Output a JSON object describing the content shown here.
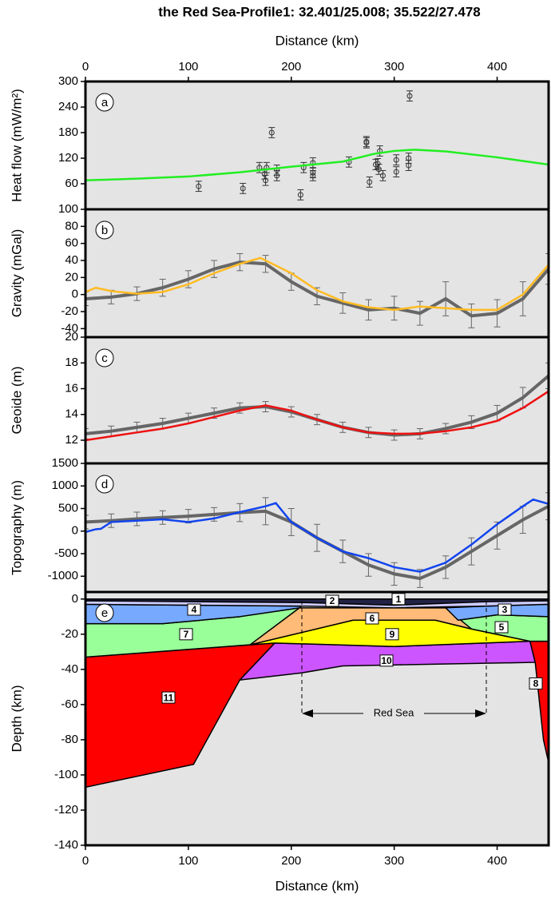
{
  "title": "the Red Sea-Profile1: 32.401/25.008; 35.522/27.478",
  "chart_data": [
    {
      "type": "line",
      "panel": "a",
      "xlabel": "Distance (km)",
      "xlim": [
        0,
        450
      ],
      "xticks": [
        0,
        100,
        200,
        300,
        400
      ],
      "ylabel": "Heat flow (mW/m²)",
      "ylim": [
        0,
        300
      ],
      "yticks": [
        60,
        120,
        180,
        240,
        300
      ],
      "series": [
        {
          "draw": "points",
          "color": "#333333",
          "x": [
            110,
            153,
            181,
            169,
            174,
            176,
            175,
            186,
            186,
            212,
            209,
            221,
            221,
            221,
            256,
            273,
            273,
            276,
            282,
            284,
            285,
            286,
            289,
            302,
            302,
            314,
            314,
            315
          ],
          "values": [
            54,
            49,
            180,
            98,
            83,
            98,
            68,
            79,
            92,
            98,
            34,
            109,
            86,
            79,
            111,
            159,
            156,
            64,
            105,
            107,
            94,
            137,
            79,
            116,
            88,
            120,
            103,
            266
          ],
          "errors": [
            12,
            12,
            12,
            12,
            12,
            12,
            12,
            12,
            12,
            12,
            12,
            12,
            12,
            12,
            12,
            12,
            12,
            12,
            12,
            12,
            12,
            12,
            12,
            12,
            12,
            12,
            12,
            12
          ]
        },
        {
          "draw": "line",
          "color": "#22ee22",
          "x": [
            0,
            50,
            100,
            150,
            200,
            250,
            280,
            300,
            320,
            350,
            400,
            450
          ],
          "values": [
            68,
            72,
            77,
            87,
            100,
            112,
            130,
            137,
            140,
            136,
            122,
            105
          ]
        }
      ]
    },
    {
      "type": "line",
      "panel": "b",
      "xlim": [
        0,
        450
      ],
      "ylabel": "Gravity (mGal)",
      "ylim": [
        -50,
        100
      ],
      "yticks": [
        -40,
        -20,
        0,
        20,
        40,
        60,
        80,
        100
      ],
      "series": [
        {
          "draw": "band",
          "color": "#666666",
          "x": [
            0,
            25,
            50,
            75,
            100,
            125,
            150,
            175,
            200,
            225,
            250,
            275,
            300,
            325,
            350,
            375,
            400,
            425,
            450
          ],
          "values": [
            -5,
            -3,
            1,
            8,
            18,
            30,
            38,
            36,
            15,
            -2,
            -10,
            -18,
            -16,
            -22,
            -5,
            -25,
            -22,
            -5,
            30
          ],
          "errors": [
            8,
            8,
            8,
            10,
            10,
            10,
            10,
            10,
            10,
            10,
            12,
            12,
            14,
            14,
            20,
            14,
            16,
            20,
            18
          ]
        },
        {
          "draw": "line",
          "color": "#ffbb22",
          "x": [
            0,
            10,
            25,
            50,
            75,
            100,
            125,
            150,
            170,
            200,
            225,
            250,
            275,
            300,
            325,
            350,
            375,
            400,
            425,
            450
          ],
          "values": [
            3,
            8,
            4,
            1,
            3,
            12,
            25,
            36,
            43,
            25,
            5,
            -8,
            -15,
            -18,
            -14,
            -16,
            -18,
            -18,
            0,
            35
          ]
        }
      ]
    },
    {
      "type": "line",
      "panel": "c",
      "xlim": [
        0,
        450
      ],
      "ylabel": "Geoide (m)",
      "ylim": [
        10.2,
        20
      ],
      "yticks": [
        12,
        14,
        16,
        18,
        20
      ],
      "series": [
        {
          "draw": "band",
          "color": "#666666",
          "x": [
            0,
            25,
            50,
            75,
            100,
            125,
            150,
            175,
            200,
            225,
            250,
            275,
            300,
            325,
            350,
            375,
            400,
            425,
            450
          ],
          "values": [
            12.5,
            12.7,
            13.0,
            13.3,
            13.7,
            14.1,
            14.5,
            14.6,
            14.2,
            13.6,
            13.0,
            12.6,
            12.4,
            12.5,
            12.9,
            13.4,
            14.1,
            15.3,
            17.0
          ],
          "errors": [
            0.4,
            0.4,
            0.4,
            0.4,
            0.4,
            0.4,
            0.4,
            0.4,
            0.4,
            0.4,
            0.4,
            0.4,
            0.4,
            0.4,
            0.4,
            0.5,
            0.6,
            0.8,
            1.0
          ]
        },
        {
          "draw": "line",
          "color": "#ee1111",
          "x": [
            0,
            25,
            50,
            75,
            100,
            125,
            150,
            175,
            200,
            225,
            250,
            275,
            300,
            325,
            350,
            375,
            400,
            425,
            450
          ],
          "values": [
            12.0,
            12.3,
            12.6,
            12.9,
            13.3,
            13.8,
            14.3,
            14.7,
            14.3,
            13.6,
            13.0,
            12.6,
            12.5,
            12.5,
            12.7,
            13.0,
            13.5,
            14.5,
            15.8
          ]
        }
      ]
    },
    {
      "type": "line",
      "panel": "d",
      "xlim": [
        0,
        450
      ],
      "ylabel": "Topography (m)",
      "ylim": [
        -1350,
        1500
      ],
      "yticks": [
        -1000,
        -500,
        0,
        500,
        1000,
        1500
      ],
      "series": [
        {
          "draw": "band",
          "color": "#666666",
          "x": [
            0,
            25,
            50,
            75,
            100,
            125,
            150,
            175,
            200,
            225,
            250,
            275,
            300,
            325,
            350,
            375,
            400,
            425,
            450
          ],
          "values": [
            200,
            230,
            270,
            300,
            330,
            370,
            410,
            440,
            200,
            -150,
            -450,
            -750,
            -950,
            -1050,
            -800,
            -450,
            -100,
            250,
            550
          ],
          "errors": [
            150,
            150,
            150,
            150,
            150,
            150,
            200,
            300,
            300,
            300,
            250,
            250,
            250,
            200,
            250,
            300,
            300,
            300,
            300
          ]
        },
        {
          "draw": "line",
          "color": "#1144ee",
          "x": [
            0,
            10,
            15,
            25,
            50,
            75,
            100,
            125,
            150,
            175,
            185,
            200,
            225,
            250,
            275,
            300,
            325,
            350,
            375,
            400,
            425,
            435,
            450
          ],
          "values": [
            -20,
            40,
            50,
            200,
            230,
            260,
            200,
            280,
            420,
            550,
            620,
            200,
            -150,
            -450,
            -600,
            -800,
            -900,
            -700,
            -300,
            150,
            550,
            700,
            600
          ]
        }
      ]
    },
    {
      "type": "layers",
      "panel": "e",
      "xlabel": "Distance (km)",
      "xlim": [
        0,
        450
      ],
      "xticks": [
        0,
        100,
        200,
        300,
        400
      ],
      "ylabel": "Depth (km)",
      "ylim": [
        -140,
        4
      ],
      "yticks": [
        -140,
        -120,
        -100,
        -80,
        -60,
        -40,
        -20,
        0
      ],
      "annotation": "Red Sea",
      "layers": [
        {
          "label": "11",
          "color": "#ff0000",
          "x": [
            0,
            184,
            150,
            105,
            0
          ],
          "y": [
            -33,
            -25,
            -46,
            -94,
            -107
          ]
        },
        {
          "label": "10",
          "color": "#cc55ff",
          "x": [
            150,
            184,
            300,
            432,
            437,
            250,
            210
          ],
          "y": [
            -46,
            -25,
            -27,
            -24,
            -36,
            -38,
            -42
          ]
        },
        {
          "label": "8",
          "color": "#ff0000",
          "x": [
            432,
            450,
            450,
            445,
            437
          ],
          "y": [
            -24,
            -24,
            -93,
            -80,
            -36
          ]
        },
        {
          "label": "9",
          "color": "#ffff00",
          "x": [
            160,
            260,
            340,
            375,
            432,
            300,
            184
          ],
          "y": [
            -26,
            -12,
            -12,
            -17,
            -24,
            -27,
            -25
          ]
        },
        {
          "label": "7",
          "color": "#99ff99",
          "x": [
            0,
            75,
            150,
            208,
            160,
            0
          ],
          "y": [
            -14,
            -14,
            -10,
            -5,
            -26,
            -33
          ]
        },
        {
          "label": "5",
          "color": "#99ff99",
          "x": [
            362,
            400,
            450,
            450,
            432,
            375
          ],
          "y": [
            -12,
            -9,
            -10,
            -24,
            -24,
            -17
          ]
        },
        {
          "label": "6",
          "color": "#ffbb77",
          "x": [
            208,
            350,
            375,
            340,
            260,
            160
          ],
          "y": [
            -5,
            -5,
            -17,
            -12,
            -12,
            -26
          ]
        },
        {
          "label": "4",
          "color": "#77aaff",
          "x": [
            0,
            210,
            208,
            150,
            75,
            0
          ],
          "y": [
            -3,
            -4,
            -5,
            -10,
            -14,
            -14
          ]
        },
        {
          "label": "3",
          "color": "#77aaff",
          "x": [
            350,
            390,
            450,
            450,
            400,
            362
          ],
          "y": [
            -5,
            -4,
            -3,
            -10,
            -9,
            -12
          ]
        },
        {
          "label": "2",
          "color": "#ccccff",
          "x": [
            0,
            450,
            450,
            390,
            300,
            210,
            0
          ],
          "y": [
            -1,
            -1,
            -3,
            -4,
            -5,
            -4,
            -3
          ]
        },
        {
          "label": "1",
          "color": "#222244",
          "x": [
            0,
            450,
            450,
            390,
            300,
            210,
            0
          ],
          "y": [
            0,
            0,
            -1,
            -1.5,
            -3.5,
            -2,
            -1
          ]
        }
      ]
    }
  ]
}
